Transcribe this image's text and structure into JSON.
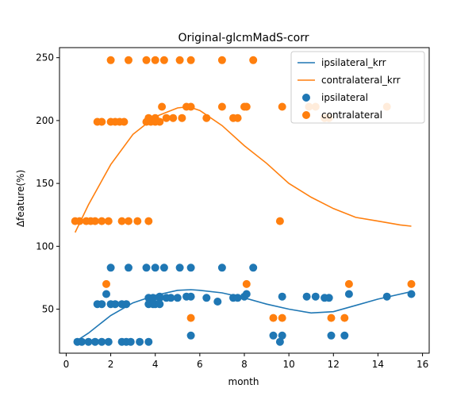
{
  "chart_data": {
    "type": "scatter",
    "title": "Original-glcmMadS-corr",
    "xlabel": "month",
    "ylabel": "Δfeature(%)",
    "xlim": [
      -0.3,
      16.3
    ],
    "ylim": [
      15,
      258
    ],
    "xticks": [
      0,
      2,
      4,
      6,
      8,
      10,
      12,
      14,
      16
    ],
    "yticks": [
      50,
      100,
      150,
      200,
      250
    ],
    "grid": false,
    "legend_position": "top-right",
    "colors": {
      "ipsilateral": "#1f77b4",
      "contralateral": "#ff7f0e"
    },
    "legend": [
      {
        "label": "ipsilateral_krr",
        "kind": "line",
        "series": "ipsilateral"
      },
      {
        "label": "contralateral_krr",
        "kind": "line",
        "series": "contralateral"
      },
      {
        "label": "ipsilateral",
        "kind": "marker",
        "series": "ipsilateral"
      },
      {
        "label": "contralateral",
        "kind": "marker",
        "series": "contralateral"
      }
    ],
    "series": [
      {
        "name": "ipsilateral_krr",
        "kind": "line",
        "color": "#1f77b4",
        "points": [
          [
            0.4,
            24
          ],
          [
            1,
            31
          ],
          [
            2,
            45
          ],
          [
            3,
            55
          ],
          [
            4,
            61
          ],
          [
            5,
            65
          ],
          [
            5.6,
            65.5
          ],
          [
            6,
            65
          ],
          [
            7,
            63
          ],
          [
            8,
            59
          ],
          [
            9,
            54
          ],
          [
            10,
            50
          ],
          [
            11,
            47
          ],
          [
            12,
            48
          ],
          [
            13,
            53
          ],
          [
            14,
            58
          ],
          [
            15.5,
            64
          ]
        ]
      },
      {
        "name": "contralateral_krr",
        "kind": "line",
        "color": "#ff7f0e",
        "points": [
          [
            0.4,
            111
          ],
          [
            1,
            133
          ],
          [
            2,
            165
          ],
          [
            3,
            189
          ],
          [
            4,
            203
          ],
          [
            5,
            210
          ],
          [
            5.5,
            211
          ],
          [
            6,
            208
          ],
          [
            7,
            196
          ],
          [
            8,
            180
          ],
          [
            9,
            166
          ],
          [
            10,
            150
          ],
          [
            11,
            139
          ],
          [
            12,
            130
          ],
          [
            13,
            123
          ],
          [
            14,
            120
          ],
          [
            15,
            117
          ],
          [
            15.5,
            116
          ]
        ]
      },
      {
        "name": "ipsilateral",
        "kind": "scatter",
        "color": "#1f77b4",
        "points": [
          [
            0.5,
            24
          ],
          [
            0.7,
            24
          ],
          [
            1.0,
            24
          ],
          [
            1.3,
            24
          ],
          [
            1.6,
            24
          ],
          [
            1.9,
            24
          ],
          [
            2.5,
            24
          ],
          [
            2.7,
            24
          ],
          [
            2.9,
            24
          ],
          [
            3.3,
            24
          ],
          [
            3.7,
            24
          ],
          [
            1.8,
            62
          ],
          [
            1.4,
            54
          ],
          [
            1.6,
            54
          ],
          [
            2.0,
            54
          ],
          [
            2.2,
            54
          ],
          [
            2.5,
            54
          ],
          [
            2.7,
            54
          ],
          [
            2.0,
            83
          ],
          [
            2.8,
            83
          ],
          [
            3.6,
            83
          ],
          [
            4.0,
            83
          ],
          [
            4.4,
            83
          ],
          [
            5.1,
            83
          ],
          [
            5.6,
            83
          ],
          [
            7.0,
            83
          ],
          [
            8.4,
            83
          ],
          [
            3.7,
            54
          ],
          [
            3.9,
            54
          ],
          [
            4.0,
            54
          ],
          [
            4.2,
            54
          ],
          [
            3.7,
            59
          ],
          [
            3.9,
            59
          ],
          [
            4.2,
            59
          ],
          [
            4.5,
            59
          ],
          [
            4.7,
            59
          ],
          [
            5.0,
            59
          ],
          [
            5.4,
            60
          ],
          [
            5.6,
            60
          ],
          [
            4.2,
            60
          ],
          [
            6.3,
            59
          ],
          [
            6.8,
            56
          ],
          [
            7.5,
            59
          ],
          [
            7.7,
            59
          ],
          [
            8.0,
            60
          ],
          [
            8.1,
            62
          ],
          [
            5.6,
            29
          ],
          [
            9.3,
            29
          ],
          [
            9.7,
            29
          ],
          [
            9.6,
            24
          ],
          [
            9.7,
            60
          ],
          [
            10.8,
            60
          ],
          [
            11.2,
            60
          ],
          [
            11.6,
            59
          ],
          [
            11.8,
            59
          ],
          [
            11.9,
            29
          ],
          [
            12.5,
            29
          ],
          [
            12.7,
            62
          ],
          [
            14.4,
            60
          ],
          [
            15.5,
            62
          ]
        ]
      },
      {
        "name": "contralateral",
        "kind": "scatter",
        "color": "#ff7f0e",
        "points": [
          [
            0.4,
            120
          ],
          [
            0.6,
            120
          ],
          [
            0.9,
            120
          ],
          [
            1.1,
            120
          ],
          [
            1.3,
            120
          ],
          [
            1.6,
            120
          ],
          [
            1.9,
            120
          ],
          [
            2.5,
            120
          ],
          [
            2.8,
            120
          ],
          [
            3.2,
            120
          ],
          [
            3.7,
            120
          ],
          [
            1.4,
            199
          ],
          [
            1.6,
            199
          ],
          [
            2.0,
            199
          ],
          [
            2.2,
            199
          ],
          [
            2.4,
            199
          ],
          [
            2.6,
            199
          ],
          [
            3.6,
            199
          ],
          [
            3.8,
            199
          ],
          [
            4.0,
            199
          ],
          [
            4.2,
            199
          ],
          [
            3.7,
            202
          ],
          [
            4.0,
            202
          ],
          [
            4.5,
            202
          ],
          [
            4.8,
            202
          ],
          [
            5.2,
            202
          ],
          [
            6.3,
            202
          ],
          [
            7.5,
            202
          ],
          [
            7.7,
            202
          ],
          [
            11.6,
            202
          ],
          [
            11.8,
            202
          ],
          [
            4.3,
            211
          ],
          [
            5.4,
            211
          ],
          [
            5.6,
            211
          ],
          [
            7.0,
            211
          ],
          [
            8.0,
            211
          ],
          [
            8.1,
            211
          ],
          [
            9.7,
            211
          ],
          [
            10.9,
            211
          ],
          [
            11.2,
            211
          ],
          [
            14.4,
            211
          ],
          [
            2.0,
            248
          ],
          [
            2.8,
            248
          ],
          [
            3.6,
            248
          ],
          [
            4.0,
            248
          ],
          [
            4.4,
            248
          ],
          [
            5.1,
            248
          ],
          [
            5.6,
            248
          ],
          [
            7.0,
            248
          ],
          [
            8.4,
            248
          ],
          [
            1.8,
            70
          ],
          [
            8.1,
            70
          ],
          [
            12.7,
            70
          ],
          [
            15.5,
            70
          ],
          [
            5.6,
            43
          ],
          [
            9.3,
            43
          ],
          [
            9.7,
            43
          ],
          [
            11.9,
            43
          ],
          [
            12.5,
            43
          ],
          [
            9.6,
            120
          ]
        ]
      }
    ]
  }
}
